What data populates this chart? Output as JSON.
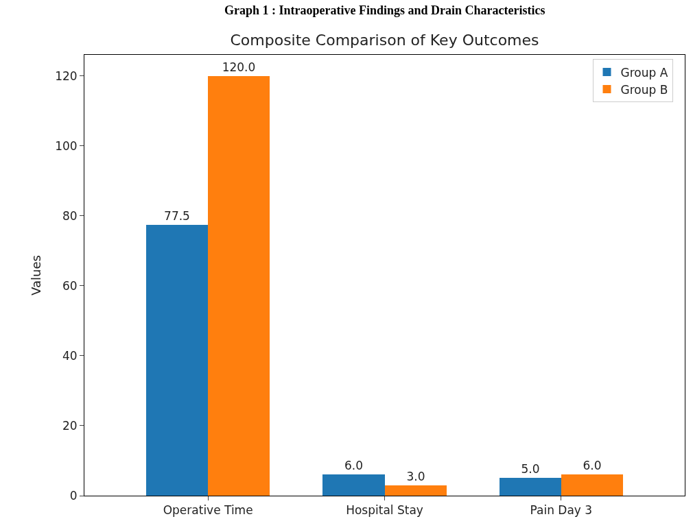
{
  "chart_data": {
    "type": "bar",
    "title": "Composite Comparison of Key Outcomes",
    "ylabel": "Values",
    "annotations": [
      "Graph 1 : Intraoperative Findings and Drain Characteristics"
    ],
    "categories": [
      "Operative Time",
      "Hospital Stay",
      "Pain Day 3"
    ],
    "series": [
      {
        "name": "Group A",
        "color": "#1f77b4",
        "values": [
          77.5,
          6.0,
          5.0
        ]
      },
      {
        "name": "Group B",
        "color": "#ff7f0e",
        "values": [
          120.0,
          3.0,
          6.0
        ]
      }
    ],
    "value_labels": [
      [
        "77.5",
        "6.0",
        "5.0"
      ],
      [
        "120.0",
        "3.0",
        "6.0"
      ]
    ],
    "ylim": [
      0,
      126
    ],
    "yticks": [
      0,
      20,
      40,
      60,
      80,
      100,
      120
    ],
    "legend": "top right"
  }
}
